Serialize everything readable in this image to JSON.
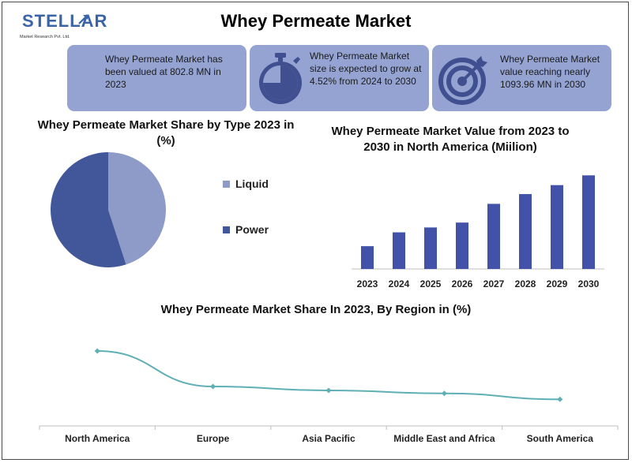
{
  "logo": {
    "brand": "STELLAR",
    "sub": "Market Research Pvt. Ltd."
  },
  "title": "Whey Permeate Market",
  "cards": [
    {
      "text": "Whey Permeate Market has been valued at 802.8 MN in 2023",
      "icon": "none"
    },
    {
      "text": "Whey Permeate Market size is expected to grow at 4.52% from 2024 to 2030",
      "icon": "stopwatch-icon"
    },
    {
      "text": "Whey Permeate Market value reaching nearly 1093.96 MN in 2030",
      "icon": "target-icon"
    }
  ],
  "colors": {
    "card": "#95a3d2",
    "icon": "#3f4f8f",
    "liquid": "#8e9bc9",
    "power": "#42579a",
    "bar": "#4152a8",
    "line": "#5fb0b5"
  },
  "chart_data": [
    {
      "type": "pie",
      "title": "Whey Permeate Market Share by Type 2023 in (%)",
      "labels": [
        "Liquid",
        "Power"
      ],
      "values": [
        45,
        55
      ],
      "legend": "right"
    },
    {
      "type": "bar",
      "title": "Whey Permeate Market Value from 2023 to 2030 in North America (Miilion)",
      "categories": [
        "2023",
        "2024",
        "2025",
        "2026",
        "2027",
        "2028",
        "2029",
        "2030"
      ],
      "values": [
        28,
        45,
        51,
        57,
        80,
        92,
        103,
        115
      ],
      "ylim": [
        0,
        125
      ],
      "grid": false
    },
    {
      "type": "line",
      "title": "Whey Permeate Market Share In 2023, By Region in (%)",
      "categories": [
        "North America",
        "Europe",
        "Asia Pacific",
        "Middle East and Africa",
        "South America"
      ],
      "values": [
        38,
        20,
        18,
        16.5,
        13.5
      ],
      "ylim": [
        0,
        50
      ],
      "grid": false
    }
  ]
}
